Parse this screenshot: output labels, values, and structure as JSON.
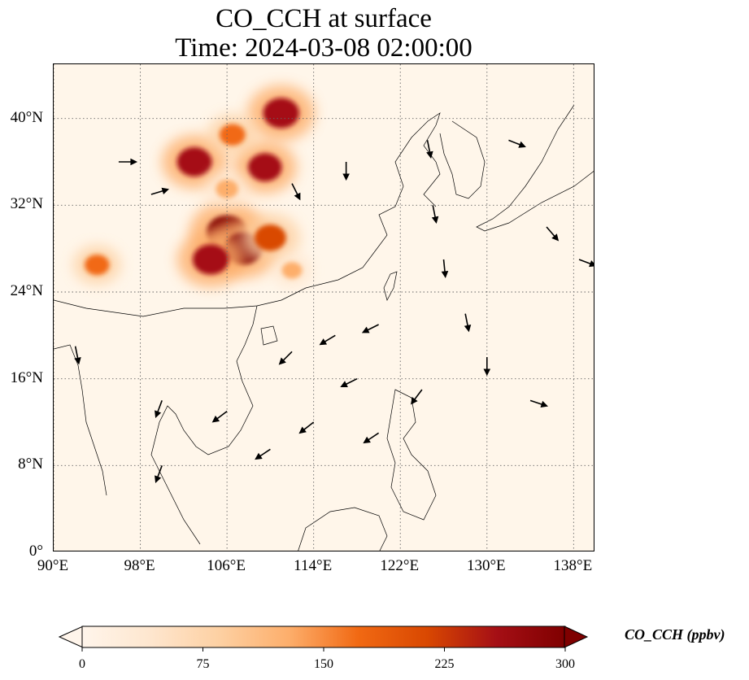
{
  "title": {
    "line1": "CO_CCH at surface",
    "line2": "Time: 2024-03-08 02:00:00"
  },
  "map": {
    "lon_range": [
      90,
      140
    ],
    "lat_range": [
      0,
      45
    ],
    "lat_ticks": [
      {
        "value": 40,
        "label": "40°N"
      },
      {
        "value": 32,
        "label": "32°N"
      },
      {
        "value": 24,
        "label": "24°N"
      },
      {
        "value": 16,
        "label": "16°N"
      },
      {
        "value": 8,
        "label": "8°N"
      },
      {
        "value": 0,
        "label": "0°"
      }
    ],
    "lon_ticks": [
      {
        "value": 90,
        "label": "90°E"
      },
      {
        "value": 98,
        "label": "98°E"
      },
      {
        "value": 106,
        "label": "106°E"
      },
      {
        "value": 114,
        "label": "114°E"
      },
      {
        "value": 122,
        "label": "122°E"
      },
      {
        "value": 130,
        "label": "130°E"
      },
      {
        "value": 138,
        "label": "138°E"
      }
    ],
    "gridlines": true,
    "background_color": "#fff6ea",
    "plumes": [
      {
        "lon": 106.0,
        "lat": 29.5,
        "value": 300
      },
      {
        "lon": 107.5,
        "lat": 28.0,
        "value": 280
      },
      {
        "lon": 104.5,
        "lat": 27.0,
        "value": 260
      },
      {
        "lon": 110.0,
        "lat": 29.0,
        "value": 220
      },
      {
        "lon": 103.0,
        "lat": 36.0,
        "value": 250
      },
      {
        "lon": 111.0,
        "lat": 40.5,
        "value": 260
      },
      {
        "lon": 109.5,
        "lat": 35.5,
        "value": 240
      },
      {
        "lon": 106.5,
        "lat": 38.5,
        "value": 170
      },
      {
        "lon": 94.0,
        "lat": 26.5,
        "value": 160
      },
      {
        "lon": 106.0,
        "lat": 33.5,
        "value": 140
      },
      {
        "lon": 112.0,
        "lat": 26.0,
        "value": 120
      }
    ],
    "winds": [
      {
        "lon": 124.5,
        "lat": 38.0,
        "u": 0.2,
        "v": -1.0
      },
      {
        "lon": 125.0,
        "lat": 32.0,
        "u": 0.2,
        "v": -1.0
      },
      {
        "lon": 126.0,
        "lat": 27.0,
        "u": 0.1,
        "v": -1.0
      },
      {
        "lon": 128.0,
        "lat": 22.0,
        "u": 0.2,
        "v": -1.0
      },
      {
        "lon": 132.0,
        "lat": 38.0,
        "u": 1.0,
        "v": -0.4
      },
      {
        "lon": 135.5,
        "lat": 30.0,
        "u": 0.6,
        "v": -0.7
      },
      {
        "lon": 138.5,
        "lat": 27.0,
        "u": 0.8,
        "v": -0.3
      },
      {
        "lon": 120.0,
        "lat": 21.0,
        "u": -1.0,
        "v": -0.5
      },
      {
        "lon": 116.0,
        "lat": 20.0,
        "u": -1.0,
        "v": -0.6
      },
      {
        "lon": 112.0,
        "lat": 18.5,
        "u": -0.8,
        "v": -0.8
      },
      {
        "lon": 118.0,
        "lat": 16.0,
        "u": -1.0,
        "v": -0.5
      },
      {
        "lon": 114.0,
        "lat": 12.0,
        "u": -0.9,
        "v": -0.7
      },
      {
        "lon": 120.0,
        "lat": 11.0,
        "u": -0.9,
        "v": -0.6
      },
      {
        "lon": 110.0,
        "lat": 9.5,
        "u": -0.9,
        "v": -0.6
      },
      {
        "lon": 106.0,
        "lat": 13.0,
        "u": -0.8,
        "v": -0.6
      },
      {
        "lon": 100.0,
        "lat": 14.0,
        "u": -0.3,
        "v": -0.8
      },
      {
        "lon": 124.0,
        "lat": 15.0,
        "u": -0.6,
        "v": -0.8
      },
      {
        "lon": 130.0,
        "lat": 18.0,
        "u": 0.0,
        "v": -1.0
      },
      {
        "lon": 134.0,
        "lat": 14.0,
        "u": 0.6,
        "v": -0.2
      },
      {
        "lon": 92.0,
        "lat": 19.0,
        "u": 0.2,
        "v": -1.0
      },
      {
        "lon": 96.0,
        "lat": 36.0,
        "u": 1.0,
        "v": 0.0
      },
      {
        "lon": 99.0,
        "lat": 33.0,
        "u": 1.0,
        "v": 0.3
      },
      {
        "lon": 112.0,
        "lat": 34.0,
        "u": 0.3,
        "v": -0.6
      },
      {
        "lon": 117.0,
        "lat": 36.0,
        "u": 0.0,
        "v": -0.7
      },
      {
        "lon": 100.0,
        "lat": 8.0,
        "u": -0.3,
        "v": -0.8
      }
    ]
  },
  "colorbar": {
    "title": "CO_CCH (ppbv)",
    "ticks": [
      {
        "value": 0,
        "label": "0"
      },
      {
        "value": 75,
        "label": "75"
      },
      {
        "value": 150,
        "label": "150"
      },
      {
        "value": 225,
        "label": "225"
      },
      {
        "value": 300,
        "label": "300"
      }
    ],
    "range": [
      0,
      300
    ],
    "colors": [
      "#fff5eb",
      "#fee6ce",
      "#fdd0a2",
      "#fdae6b",
      "#f16913",
      "#d94801",
      "#a50f15",
      "#7f0000"
    ],
    "extend": "both"
  }
}
